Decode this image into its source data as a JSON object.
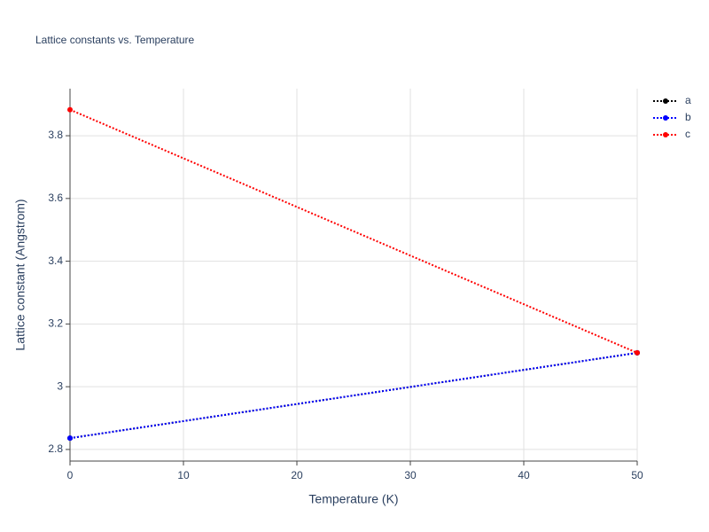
{
  "chart_data": {
    "type": "line",
    "title": "Lattice constants vs. Temperature",
    "x_label": "Temperature (K)",
    "y_label": "Lattice constant (Angstrom)",
    "x": [
      0,
      50
    ],
    "series": [
      {
        "name": "a",
        "color": "#000000",
        "values": [
          2.836,
          3.108
        ]
      },
      {
        "name": "b",
        "color": "#0000ff",
        "values": [
          2.836,
          3.108
        ]
      },
      {
        "name": "c",
        "color": "#ff0000",
        "values": [
          3.883,
          3.108
        ]
      }
    ],
    "xlim": [
      0,
      50
    ],
    "xticks": [
      0,
      10,
      20,
      30,
      40,
      50
    ],
    "ylim": [
      2.763,
      3.95
    ],
    "yticks": [
      2.8,
      3,
      3.2,
      3.4,
      3.6,
      3.8
    ],
    "grid": true,
    "legend": "right",
    "line_style": "dotted"
  }
}
